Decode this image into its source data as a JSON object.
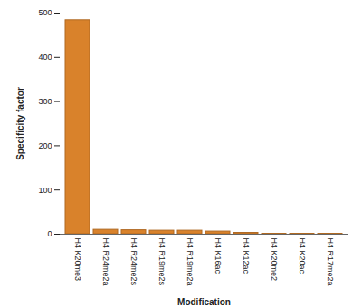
{
  "chart_data": {
    "type": "bar",
    "x_label": "Modification",
    "y_label": "Specificity factor",
    "categories": [
      "H4 K20me3",
      "H4 R24me2a",
      "H4 R24me2s",
      "H4 R19me2s",
      "H4 R19me2a",
      "H4 K16ac",
      "H4 K12ac",
      "H4 K20me2",
      "H4 K20ac",
      "H4 R17me2a"
    ],
    "values": [
      484,
      10,
      9,
      8,
      8,
      6,
      3,
      1,
      1,
      1
    ],
    "color": "#d9822b",
    "ylim": [
      0,
      500
    ],
    "yticks": [
      0,
      100,
      200,
      300,
      400,
      500
    ],
    "grid": false
  }
}
